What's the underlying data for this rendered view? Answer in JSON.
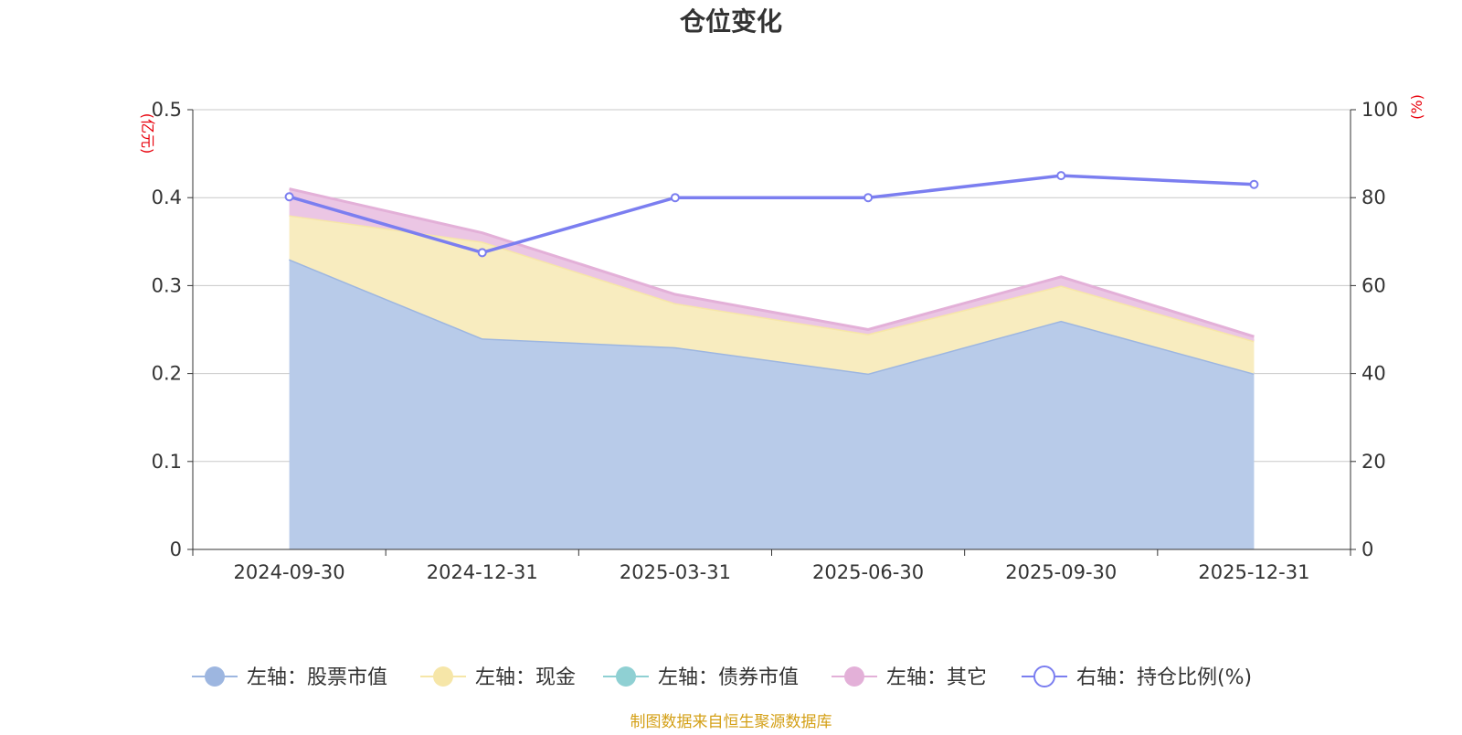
{
  "chart_data": {
    "type": "area",
    "title": "仓位变化",
    "left_axis_unit": "(亿元)",
    "right_axis_unit": "(%)",
    "categories": [
      "2024-09-30",
      "2024-12-31",
      "2025-03-31",
      "2025-06-30",
      "2025-09-30",
      "2025-12-31"
    ],
    "y_left": {
      "range": [
        0,
        0.5
      ],
      "ticks": [
        "0",
        "0.1",
        "0.2",
        "0.3",
        "0.4",
        "0.5"
      ]
    },
    "y_right": {
      "range": [
        0,
        100
      ],
      "ticks": [
        "0",
        "20",
        "40",
        "60",
        "80",
        "100"
      ]
    },
    "stacked": true,
    "grid": true,
    "legend_position": "bottom",
    "series": [
      {
        "name": "左轴：股票市值",
        "axis": "left",
        "kind": "area",
        "color": "#9db6e0",
        "fill": "#b8cbe9",
        "values": [
          0.33,
          0.24,
          0.23,
          0.2,
          0.26,
          0.2
        ]
      },
      {
        "name": "左轴：现金",
        "axis": "left",
        "kind": "area",
        "color": "#f6e6a8",
        "fill": "#f8ecbf",
        "values": [
          0.05,
          0.11,
          0.05,
          0.045,
          0.04,
          0.037
        ]
      },
      {
        "name": "左轴：债券市值",
        "axis": "left",
        "kind": "area",
        "color": "#8fd0d3",
        "fill": "#a9dcdf",
        "values": [
          0,
          0,
          0,
          0,
          0,
          0
        ]
      },
      {
        "name": "左轴：其它",
        "axis": "left",
        "kind": "area",
        "color": "#e3b0d8",
        "fill": "#ebc6e4",
        "values": [
          0.03,
          0.01,
          0.01,
          0.005,
          0.01,
          0.005
        ]
      },
      {
        "name": "右轴：持仓比例(%)",
        "axis": "right",
        "kind": "line",
        "color": "#7b7ef0",
        "values": [
          80.2,
          67.5,
          80.0,
          80.0,
          85.0,
          83.0
        ]
      }
    ],
    "source_note": "制图数据来自恒生聚源数据库"
  }
}
